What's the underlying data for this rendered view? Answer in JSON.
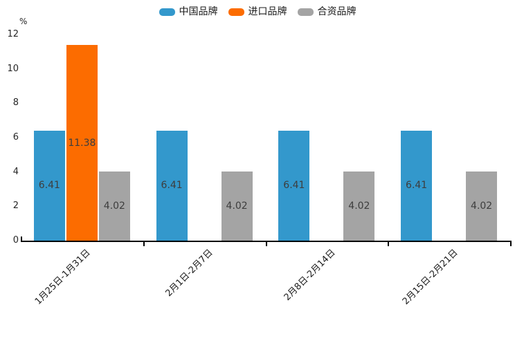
{
  "legend": [
    {
      "label": "中国品牌",
      "color": "#3398cc"
    },
    {
      "label": "进口品牌",
      "color": "#fc6c00"
    },
    {
      "label": "合资品牌",
      "color": "#a4a4a4"
    }
  ],
  "y_axis": {
    "unit_label": "%",
    "ticks": [
      0,
      2,
      4,
      6,
      8,
      10,
      12
    ]
  },
  "chart_data": {
    "type": "bar",
    "title": "",
    "xlabel": "",
    "ylabel": "%",
    "ylim": [
      0,
      12
    ],
    "grid": false,
    "legend_position": "top-center",
    "categories": [
      "1月25日-1月31日",
      "2月1日-2月7日",
      "2月8日-2月14日",
      "2月15日-2月21日"
    ],
    "series": [
      {
        "name": "中国品牌",
        "color": "#3398cc",
        "values": [
          6.41,
          6.41,
          6.41,
          6.41
        ]
      },
      {
        "name": "进口品牌",
        "color": "#fc6c00",
        "values": [
          11.38,
          null,
          null,
          null
        ]
      },
      {
        "name": "合资品牌",
        "color": "#a4a4a4",
        "values": [
          4.02,
          4.02,
          4.02,
          4.02
        ]
      }
    ],
    "bar_value_labels_decimals": 2
  }
}
